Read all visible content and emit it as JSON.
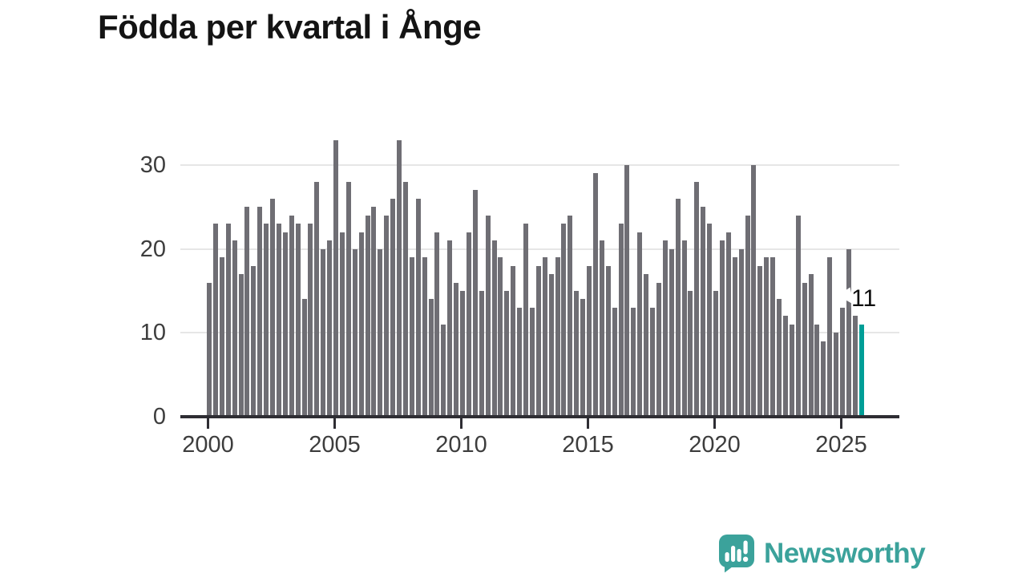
{
  "title": "Födda per kvartal i Ånge",
  "chart_data": {
    "type": "bar",
    "title": "Födda per kvartal i Ånge",
    "frequency": "quarterly",
    "start_period": "2000 Q1",
    "end_period": "2025 Q4",
    "values": [
      16,
      23,
      19,
      23,
      21,
      17,
      25,
      18,
      25,
      23,
      26,
      23,
      22,
      24,
      23,
      14,
      23,
      28,
      20,
      21,
      33,
      22,
      28,
      20,
      22,
      24,
      25,
      20,
      24,
      26,
      33,
      28,
      19,
      26,
      19,
      14,
      22,
      11,
      21,
      16,
      15,
      22,
      27,
      15,
      24,
      21,
      19,
      15,
      18,
      13,
      23,
      13,
      18,
      19,
      17,
      19,
      23,
      24,
      15,
      14,
      18,
      29,
      21,
      18,
      13,
      23,
      30,
      13,
      22,
      17,
      13,
      16,
      21,
      20,
      26,
      21,
      15,
      28,
      25,
      23,
      15,
      21,
      22,
      19,
      20,
      24,
      30,
      18,
      19,
      19,
      14,
      12,
      11,
      24,
      16,
      17,
      11,
      9,
      19,
      10,
      13,
      20,
      12,
      11
    ],
    "highlight_index": 103,
    "highlight_label": "11",
    "x_ticks": [
      "2000",
      "2005",
      "2010",
      "2015",
      "2020",
      "2025"
    ],
    "y_ticks": [
      "0",
      "10",
      "20",
      "30"
    ],
    "ylim": [
      0,
      33
    ],
    "xlabel": "",
    "ylabel": "",
    "grid": "horizontal",
    "legend": "none",
    "bar_color": "#6f6e74",
    "highlight_color": "#009e97",
    "gridline_color": "#e6e6e6",
    "axis_color": "#2e2d33",
    "tick_label_color": "#3d3d3d"
  },
  "branding": {
    "name": "Newsworthy",
    "color": "#3ba29b",
    "icon": "newsworthy-logo-icon"
  }
}
